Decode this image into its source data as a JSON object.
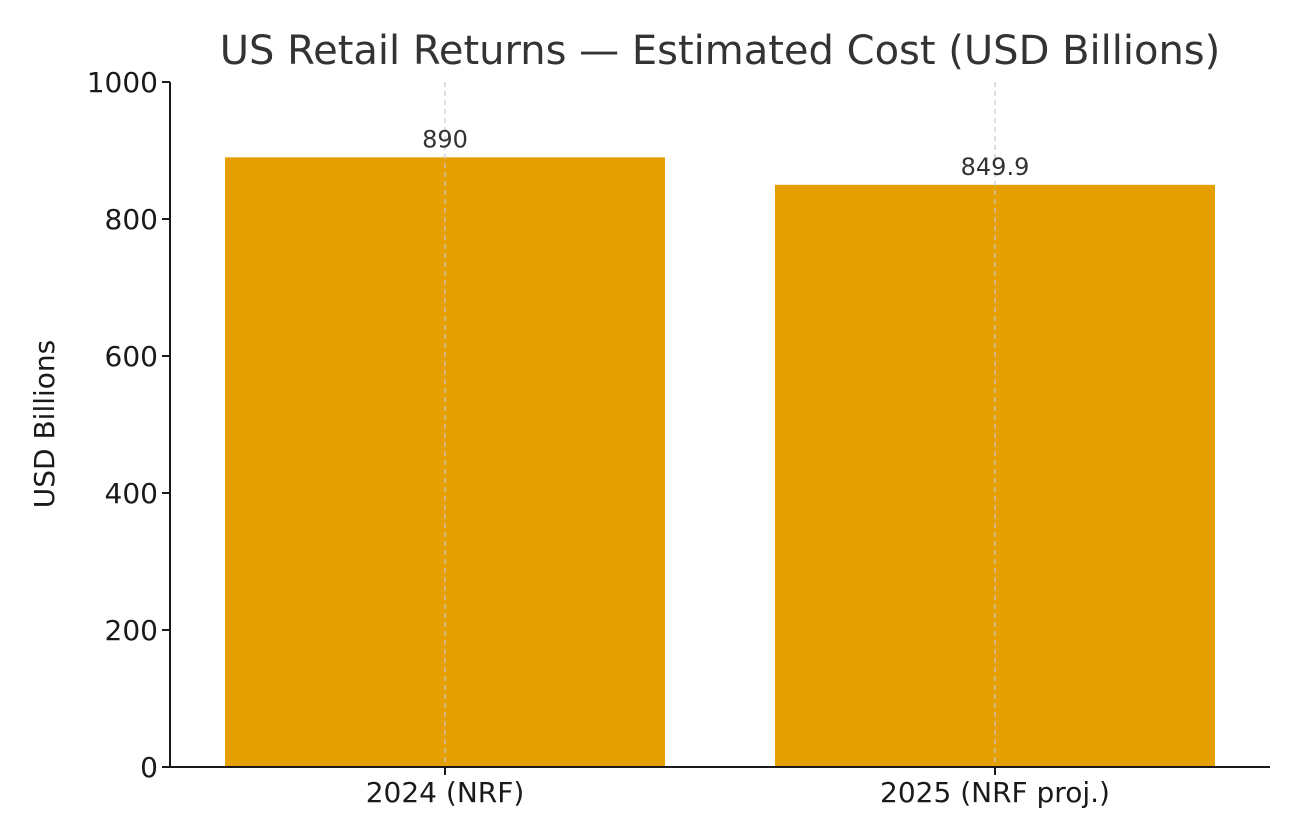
{
  "chart_data": {
    "type": "bar",
    "title": "US Retail Returns — Estimated Cost (USD Billions)",
    "xlabel": "",
    "ylabel": "USD Billions",
    "categories": [
      "2024 (NRF)",
      "2025 (NRF proj.)"
    ],
    "values": [
      890,
      849.9
    ],
    "data_labels": [
      "890",
      "849.9"
    ],
    "ylim": [
      0,
      1000
    ],
    "yticks": [
      0,
      200,
      400,
      600,
      800,
      1000
    ],
    "ytick_labels": [
      "0",
      "200",
      "400",
      "600",
      "800",
      "1000"
    ],
    "grid": "vertical dashed at categories",
    "legend": "none",
    "colors": {
      "bar": "#E59F00",
      "axis": "#1a1a1a",
      "grid": "#c8c8c8"
    }
  }
}
